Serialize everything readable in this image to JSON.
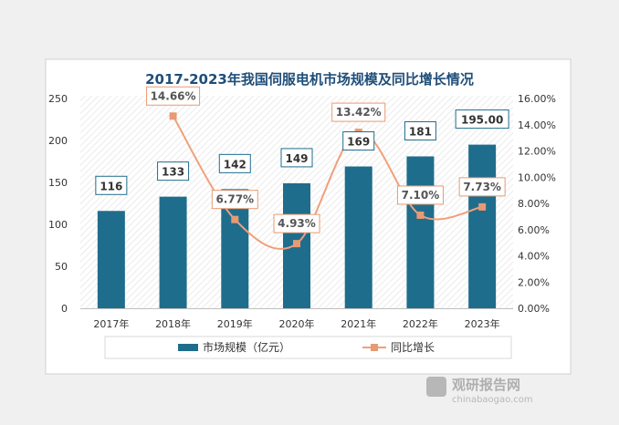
{
  "chart_data": {
    "type": "bar",
    "title": "2017-2023年我国伺服电机市场规模及同比增长情况",
    "categories": [
      "2017年",
      "2018年",
      "2019年",
      "2020年",
      "2021年",
      "2022年",
      "2023年"
    ],
    "series": [
      {
        "name": "市场规模（亿元）",
        "type": "bar",
        "axis": "left",
        "values": [
          116,
          133,
          142,
          149,
          169,
          181,
          195.0
        ],
        "labels": [
          "116",
          "133",
          "142",
          "149",
          "169",
          "181",
          "195.00"
        ]
      },
      {
        "name": "同比增长",
        "type": "line",
        "axis": "right",
        "values": [
          null,
          14.66,
          6.77,
          4.93,
          13.42,
          7.1,
          7.73
        ],
        "labels": [
          "",
          "14.66%",
          "6.77%",
          "4.93%",
          "13.42%",
          "7.10%",
          "7.73%"
        ]
      }
    ],
    "y_left": {
      "min": 0,
      "max": 250,
      "ticks": [
        "0",
        "50",
        "100",
        "150",
        "200",
        "250"
      ]
    },
    "y_right": {
      "min": 0,
      "max": 16,
      "ticks": [
        "0.00%",
        "2.00%",
        "4.00%",
        "6.00%",
        "8.00%",
        "10.00%",
        "12.00%",
        "14.00%",
        "16.00%"
      ]
    },
    "legend_position": "bottom",
    "grid": false
  },
  "colors": {
    "bar": "#1f6d8c",
    "line": "#f0a07a",
    "marker": "#e89a73",
    "bar_label_border": "#1f6d8c",
    "line_label_border": "#e89a73",
    "title": "#1f4e79"
  },
  "watermark": {
    "brand": "观研报告网",
    "url": "chinabaogao.com"
  }
}
